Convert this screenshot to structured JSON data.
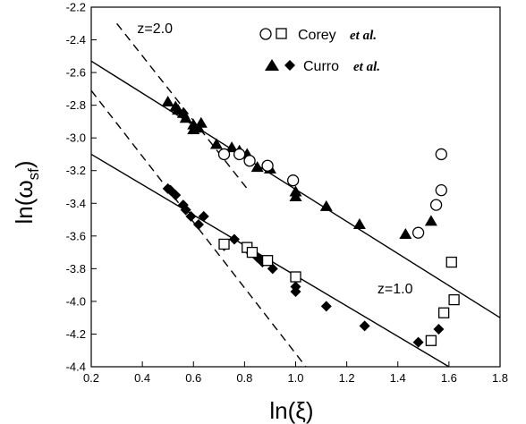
{
  "chart_data": {
    "type": "scatter",
    "xlabel": "ln(ξ)",
    "ylabel_main": "ln(ω",
    "ylabel_sub": "sf",
    "ylabel_close": ")",
    "xlim": [
      0.2,
      1.8
    ],
    "ylim": [
      -4.4,
      -2.2
    ],
    "xticks": [
      0.2,
      0.4,
      0.6,
      0.8,
      1.0,
      1.2,
      1.4,
      1.6,
      1.8
    ],
    "xtick_labels": [
      "0.2",
      "0.4",
      "0.6",
      "0.8",
      "1.0",
      "1.2",
      "1.4",
      "1.6",
      "1.8"
    ],
    "yticks": [
      -2.2,
      -2.4,
      -2.6,
      -2.8,
      -3.0,
      -3.2,
      -3.4,
      -3.6,
      -3.8,
      -4.0,
      -4.2,
      -4.4
    ],
    "ytick_labels": [
      "-2.2",
      "-2.4",
      "-2.6",
      "-2.8",
      "-3.0",
      "-3.2",
      "-3.4",
      "-3.6",
      "-3.8",
      "-4.0",
      "-4.2",
      "-4.4"
    ],
    "grid": false,
    "legend": {
      "placement": "top-right",
      "entries": [
        {
          "name": "Corey",
          "suffix": "et al.",
          "markers": [
            "circle-open",
            "square-open"
          ]
        },
        {
          "name": "Curro",
          "suffix": "et al.",
          "markers": [
            "triangle-filled",
            "diamond-filled"
          ]
        }
      ]
    },
    "annotations": [
      {
        "text": "z=2.0",
        "x": 0.38,
        "y": -2.36
      },
      {
        "text": "z=1.0",
        "x": 1.32,
        "y": -3.95
      }
    ],
    "series": [
      {
        "marker": "triangle-filled",
        "points": [
          [
            0.5,
            -2.78
          ],
          [
            0.53,
            -2.81
          ],
          [
            0.54,
            -2.83
          ],
          [
            0.56,
            -2.85
          ],
          [
            0.57,
            -2.88
          ],
          [
            0.6,
            -2.92
          ],
          [
            0.6,
            -2.95
          ],
          [
            0.62,
            -2.94
          ],
          [
            0.63,
            -2.91
          ],
          [
            0.69,
            -3.04
          ],
          [
            0.75,
            -3.06
          ],
          [
            0.78,
            -3.08
          ],
          [
            0.81,
            -3.1
          ],
          [
            0.85,
            -3.18
          ],
          [
            0.9,
            -3.19
          ],
          [
            1.0,
            -3.33
          ],
          [
            1.0,
            -3.36
          ],
          [
            1.12,
            -3.42
          ],
          [
            1.25,
            -3.53
          ],
          [
            1.43,
            -3.59
          ],
          [
            1.53,
            -3.51
          ]
        ]
      },
      {
        "marker": "circle-open",
        "points": [
          [
            0.72,
            -3.1
          ],
          [
            0.78,
            -3.1
          ],
          [
            0.82,
            -3.14
          ],
          [
            0.89,
            -3.17
          ],
          [
            0.99,
            -3.26
          ],
          [
            1.48,
            -3.58
          ],
          [
            1.55,
            -3.41
          ],
          [
            1.57,
            -3.32
          ],
          [
            1.57,
            -3.1
          ]
        ]
      },
      {
        "marker": "diamond-filled",
        "points": [
          [
            0.5,
            -3.31
          ],
          [
            0.51,
            -3.32
          ],
          [
            0.53,
            -3.35
          ],
          [
            0.56,
            -3.41
          ],
          [
            0.57,
            -3.44
          ],
          [
            0.59,
            -3.48
          ],
          [
            0.62,
            -3.53
          ],
          [
            0.64,
            -3.48
          ],
          [
            0.72,
            -3.66
          ],
          [
            0.76,
            -3.62
          ],
          [
            0.81,
            -3.68
          ],
          [
            0.85,
            -3.73
          ],
          [
            0.87,
            -3.76
          ],
          [
            0.91,
            -3.8
          ],
          [
            1.0,
            -3.91
          ],
          [
            1.0,
            -3.94
          ],
          [
            1.12,
            -4.03
          ],
          [
            1.27,
            -4.15
          ],
          [
            1.48,
            -4.25
          ],
          [
            1.56,
            -4.17
          ]
        ]
      },
      {
        "marker": "square-open",
        "points": [
          [
            0.72,
            -3.65
          ],
          [
            0.81,
            -3.67
          ],
          [
            0.83,
            -3.7
          ],
          [
            0.89,
            -3.75
          ],
          [
            1.0,
            -3.85
          ],
          [
            1.53,
            -4.24
          ],
          [
            1.58,
            -4.07
          ],
          [
            1.61,
            -3.76
          ],
          [
            1.62,
            -3.99
          ]
        ]
      }
    ],
    "lines": [
      {
        "style": "solid",
        "from": [
          0.2,
          -2.53
        ],
        "to": [
          1.8,
          -4.1
        ]
      },
      {
        "style": "solid",
        "from": [
          0.2,
          -3.1
        ],
        "to": [
          1.6,
          -4.4
        ]
      },
      {
        "style": "dashed",
        "from": [
          0.3,
          -2.3
        ],
        "to": [
          0.82,
          -3.33
        ]
      },
      {
        "style": "dashed",
        "from": [
          0.2,
          -2.71
        ],
        "to": [
          1.04,
          -4.4
        ]
      }
    ]
  }
}
